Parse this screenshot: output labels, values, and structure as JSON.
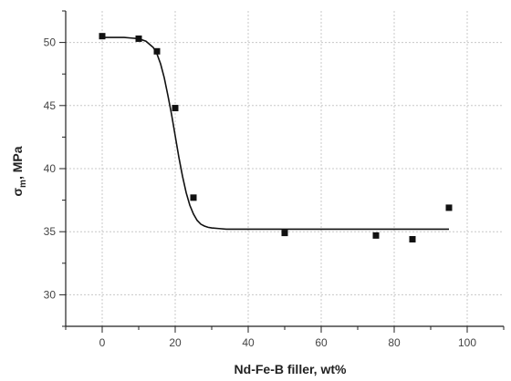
{
  "chart_data": {
    "type": "scatter",
    "title": "",
    "xlabel": "Nd-Fe-B filler, wt%",
    "ylabel": {
      "symbol": "σ",
      "subscript": "m",
      "suffix": ", MPa"
    },
    "xlim": [
      -10,
      110
    ],
    "ylim": [
      27.5,
      52.5
    ],
    "x_ticks": [
      0,
      20,
      40,
      60,
      80,
      100
    ],
    "x_tick_labels": [
      "0",
      "20",
      "40",
      "60",
      "80",
      "100"
    ],
    "y_ticks": [
      30,
      35,
      40,
      45,
      50
    ],
    "y_tick_labels": [
      "30",
      "35",
      "40",
      "45",
      "50"
    ],
    "grid": true,
    "legend": "none",
    "series": [
      {
        "type": "scatter",
        "x": [
          0,
          10,
          15,
          20,
          25,
          50,
          75,
          85,
          95
        ],
        "y": [
          50.5,
          50.3,
          49.3,
          44.8,
          37.7,
          34.9,
          34.7,
          34.4,
          36.9
        ]
      },
      {
        "type": "line",
        "x": [
          0,
          2,
          4,
          6,
          8,
          10,
          12,
          14,
          15,
          16,
          17,
          18,
          19,
          20,
          21,
          22,
          23,
          24,
          25,
          26,
          27,
          28,
          29,
          30,
          32,
          34,
          36,
          40,
          50,
          60,
          70,
          80,
          90,
          95
        ],
        "y": [
          50.4,
          50.4,
          50.4,
          50.4,
          50.35,
          50.3,
          50.1,
          49.6,
          49.1,
          48.3,
          47.2,
          45.8,
          44.3,
          42.6,
          40.9,
          39.4,
          38.1,
          37.1,
          36.4,
          35.9,
          35.6,
          35.45,
          35.35,
          35.3,
          35.25,
          35.2,
          35.2,
          35.2,
          35.2,
          35.2,
          35.2,
          35.2,
          35.2,
          35.2
        ]
      }
    ]
  }
}
